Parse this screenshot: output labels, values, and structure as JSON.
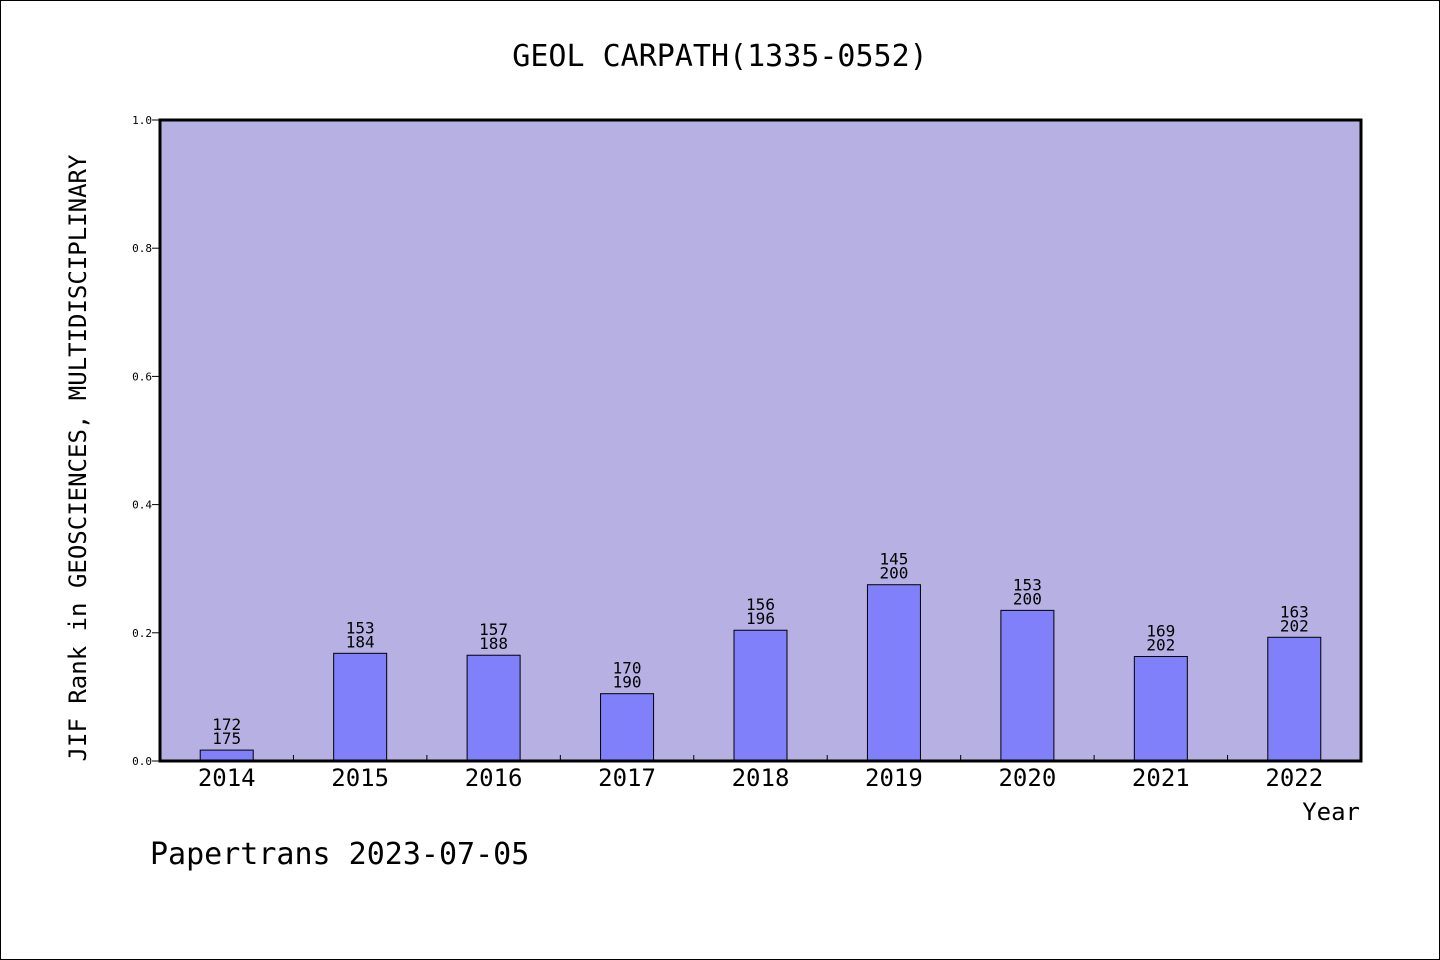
{
  "chart_data": {
    "type": "bar",
    "title": "GEOL CARPATH(1335-0552)",
    "xlabel": "Year",
    "ylabel": "JIF Rank in GEOSCIENCES, MULTIDISCIPLINARY",
    "categories": [
      "2014",
      "2015",
      "2016",
      "2017",
      "2018",
      "2019",
      "2020",
      "2021",
      "2022"
    ],
    "values": [
      0.017,
      0.168,
      0.165,
      0.105,
      0.204,
      0.275,
      0.235,
      0.163,
      0.193
    ],
    "rank": [
      "172",
      "153",
      "157",
      "170",
      "156",
      "145",
      "153",
      "169",
      "163"
    ],
    "total": [
      "175",
      "184",
      "188",
      "190",
      "196",
      "200",
      "200",
      "202",
      "202"
    ],
    "ylim": [
      0,
      1
    ],
    "yticks": [
      "0.0",
      "0.2",
      "0.4",
      "0.6",
      "0.8",
      "1.0"
    ],
    "grid": false,
    "colors": {
      "plot_bg": "#b6b0e3",
      "bar_fill": "#8080fb",
      "bar_stroke": "#000000"
    }
  },
  "footer": {
    "text": "Papertrans 2023-07-05"
  }
}
